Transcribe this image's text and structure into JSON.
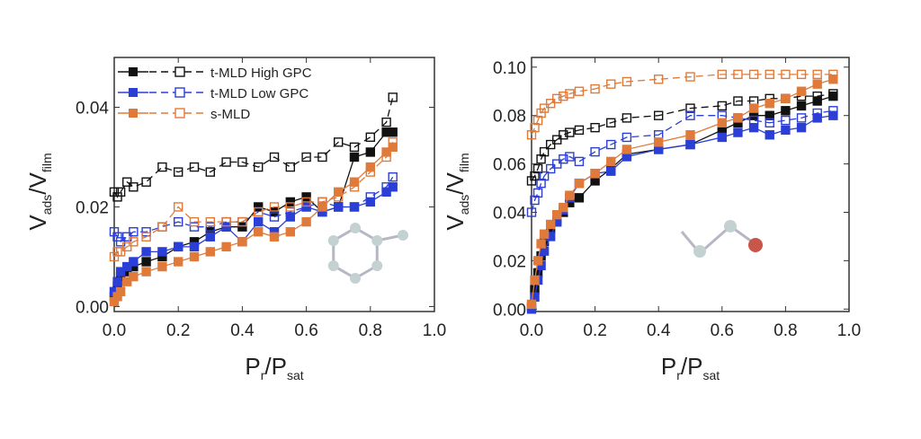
{
  "chart_data": [
    {
      "type": "scatter",
      "panel": "left",
      "xlabel": {
        "main": "P",
        "sub1": "r",
        "sep": "/P",
        "sub2": "sat"
      },
      "ylabel": {
        "main": "V",
        "sub1": "ads",
        "sep": "/V",
        "sub2": "film"
      },
      "xlim": [
        0,
        1.0
      ],
      "ylim": [
        -0.001,
        0.05
      ],
      "xticks": [
        "0.0",
        "0.2",
        "0.4",
        "0.6",
        "0.8",
        "1.0"
      ],
      "xtick_values": [
        0,
        0.2,
        0.4,
        0.6,
        0.8,
        1.0
      ],
      "yticks": [
        "0.00",
        "0.02",
        "0.04"
      ],
      "ytick_values": [
        0,
        0.02,
        0.04
      ],
      "legend_position": "top-left",
      "legend": [
        "t-MLD High GPC",
        "t-MLD Low GPC",
        "s-MLD"
      ],
      "annotation": "toluene molecule",
      "x": [
        0,
        0.01,
        0.02,
        0.04,
        0.06,
        0.1,
        0.15,
        0.2,
        0.25,
        0.3,
        0.35,
        0.4,
        0.45,
        0.5,
        0.55,
        0.6,
        0.65,
        0.7,
        0.75,
        0.8,
        0.85,
        0.87
      ],
      "series": [
        {
          "name": "t-MLD High GPC (adsorption)",
          "color": "#111111",
          "filled": true,
          "values": [
            0.002,
            0.004,
            0.006,
            0.007,
            0.008,
            0.009,
            0.01,
            0.012,
            0.013,
            0.015,
            0.016,
            0.016,
            0.02,
            0.019,
            0.021,
            0.022,
            0.019,
            0.02,
            0.03,
            0.031,
            0.035,
            0.035
          ]
        },
        {
          "name": "t-MLD High GPC (desorption)",
          "color": "#111111",
          "filled": false,
          "values": [
            0.023,
            0.022,
            0.023,
            0.025,
            0.024,
            0.025,
            0.028,
            0.027,
            0.028,
            0.027,
            0.029,
            0.029,
            0.028,
            0.03,
            0.028,
            0.03,
            0.03,
            0.033,
            0.032,
            0.034,
            0.037,
            0.042
          ]
        },
        {
          "name": "t-MLD Low GPC (adsorption)",
          "color": "#2b3fd6",
          "filled": true,
          "values": [
            0.003,
            0.005,
            0.007,
            0.008,
            0.009,
            0.011,
            0.011,
            0.012,
            0.012,
            0.014,
            0.016,
            0.013,
            0.017,
            0.015,
            0.018,
            0.02,
            0.019,
            0.02,
            0.02,
            0.021,
            0.023,
            0.024
          ]
        },
        {
          "name": "t-MLD Low GPC (desorption)",
          "color": "#2b3fd6",
          "filled": false,
          "values": [
            0.015,
            0.014,
            0.013,
            0.014,
            0.015,
            0.015,
            0.016,
            0.017,
            0.016,
            0.016,
            0.017,
            0.017,
            0.019,
            0.018,
            0.019,
            0.02,
            0.021,
            0.02,
            0.02,
            0.022,
            0.024,
            0.026
          ]
        },
        {
          "name": "s-MLD (adsorption)",
          "color": "#e07a3a",
          "filled": true,
          "values": [
            0.001,
            0.002,
            0.003,
            0.005,
            0.006,
            0.007,
            0.008,
            0.009,
            0.01,
            0.011,
            0.012,
            0.013,
            0.015,
            0.014,
            0.015,
            0.017,
            0.02,
            0.023,
            0.025,
            0.028,
            0.031,
            0.032
          ]
        },
        {
          "name": "s-MLD (desorption)",
          "color": "#e07a3a",
          "filled": false,
          "values": [
            0.01,
            0.011,
            0.011,
            0.012,
            0.013,
            0.014,
            0.016,
            0.02,
            0.017,
            0.017,
            0.017,
            0.017,
            0.019,
            0.02,
            0.02,
            0.021,
            0.021,
            0.022,
            0.024,
            0.027,
            0.03,
            0.033
          ]
        }
      ]
    },
    {
      "type": "scatter",
      "panel": "right",
      "xlabel": {
        "main": "P",
        "sub1": "r",
        "sep": "/P",
        "sub2": "sat"
      },
      "ylabel": {
        "main": "V",
        "sub1": "ads",
        "sep": "/V",
        "sub2": "film"
      },
      "xlim": [
        0,
        1.0
      ],
      "ylim": [
        -0.001,
        0.104
      ],
      "xticks": [
        "0.0",
        "0.2",
        "0.4",
        "0.6",
        "0.8",
        "1.0"
      ],
      "xtick_values": [
        0,
        0.2,
        0.4,
        0.6,
        0.8,
        1.0
      ],
      "yticks": [
        "0.00",
        "0.02",
        "0.04",
        "0.06",
        "0.08",
        "0.10"
      ],
      "ytick_values": [
        0,
        0.02,
        0.04,
        0.06,
        0.08,
        0.1
      ],
      "annotation": "ethanol molecule",
      "x": [
        0,
        0.01,
        0.02,
        0.03,
        0.04,
        0.06,
        0.08,
        0.1,
        0.12,
        0.15,
        0.2,
        0.25,
        0.3,
        0.4,
        0.5,
        0.6,
        0.65,
        0.7,
        0.75,
        0.8,
        0.85,
        0.9,
        0.95
      ],
      "series": [
        {
          "name": "t-MLD High GPC (adsorption)",
          "color": "#111111",
          "filled": true,
          "values": [
            0.001,
            0.008,
            0.015,
            0.022,
            0.028,
            0.033,
            0.037,
            0.04,
            0.044,
            0.046,
            0.053,
            0.058,
            0.064,
            0.066,
            0.068,
            0.074,
            0.077,
            0.08,
            0.08,
            0.082,
            0.084,
            0.086,
            0.088
          ]
        },
        {
          "name": "t-MLD High GPC (desorption)",
          "color": "#111111",
          "filled": false,
          "values": [
            0.053,
            0.055,
            0.058,
            0.062,
            0.065,
            0.068,
            0.07,
            0.072,
            0.073,
            0.074,
            0.075,
            0.077,
            0.079,
            0.08,
            0.083,
            0.084,
            0.086,
            0.086,
            0.087,
            0.087,
            0.088,
            0.088,
            0.089
          ]
        },
        {
          "name": "t-MLD Low GPC (adsorption)",
          "color": "#2b3fd6",
          "filled": true,
          "values": [
            0.0,
            0.005,
            0.012,
            0.018,
            0.024,
            0.03,
            0.036,
            0.041,
            0.046,
            0.052,
            0.056,
            0.057,
            0.063,
            0.066,
            0.068,
            0.071,
            0.073,
            0.075,
            0.072,
            0.074,
            0.075,
            0.079,
            0.08
          ]
        },
        {
          "name": "t-MLD Low GPC (desorption)",
          "color": "#2b3fd6",
          "filled": false,
          "values": [
            0.04,
            0.045,
            0.048,
            0.052,
            0.055,
            0.058,
            0.06,
            0.062,
            0.063,
            0.061,
            0.065,
            0.068,
            0.071,
            0.072,
            0.08,
            0.08,
            0.079,
            0.078,
            0.077,
            0.078,
            0.079,
            0.081,
            0.082
          ]
        },
        {
          "name": "s-MLD (adsorption)",
          "color": "#e07a3a",
          "filled": true,
          "values": [
            0.002,
            0.012,
            0.02,
            0.027,
            0.031,
            0.035,
            0.039,
            0.042,
            0.047,
            0.052,
            0.056,
            0.061,
            0.066,
            0.069,
            0.072,
            0.077,
            0.079,
            0.083,
            0.085,
            0.087,
            0.09,
            0.093,
            0.095
          ]
        },
        {
          "name": "s-MLD (desorption)",
          "color": "#e07a3a",
          "filled": false,
          "values": [
            0.072,
            0.075,
            0.078,
            0.081,
            0.083,
            0.085,
            0.087,
            0.088,
            0.089,
            0.09,
            0.091,
            0.093,
            0.094,
            0.095,
            0.096,
            0.097,
            0.097,
            0.097,
            0.097,
            0.097,
            0.097,
            0.097,
            0.097
          ]
        }
      ]
    }
  ]
}
